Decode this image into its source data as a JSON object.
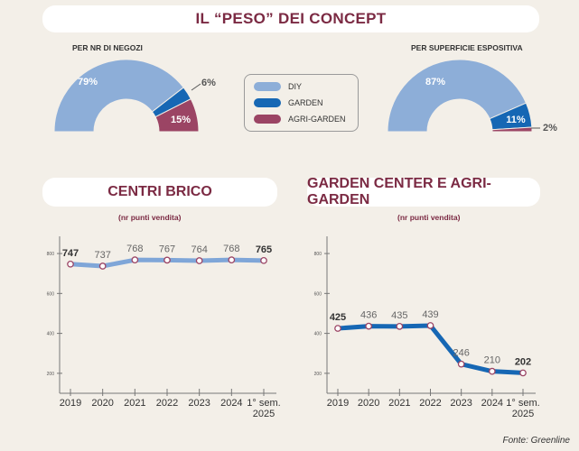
{
  "title": "IL “PESO” DEI CONCEPT",
  "colors": {
    "diy": "#8daed8",
    "garden": "#1667b4",
    "agri": "#9b4464",
    "title": "#7b2a43"
  },
  "donuts": {
    "left": {
      "label": "PER NR DI NEGOZI",
      "slices": [
        {
          "name": "DIY",
          "value": 79,
          "text": "79%"
        },
        {
          "name": "GARDEN",
          "value": 6,
          "text": "6%"
        },
        {
          "name": "AGRI-GARDEN",
          "value": 15,
          "text": "15%"
        }
      ]
    },
    "right": {
      "label": "PER SUPERFICIE ESPOSITIVA",
      "slices": [
        {
          "name": "DIY",
          "value": 87,
          "text": "87%"
        },
        {
          "name": "GARDEN",
          "value": 11,
          "text": "11%"
        },
        {
          "name": "AGRI-GARDEN",
          "value": 2,
          "text": "2%"
        }
      ]
    }
  },
  "legend": [
    "DIY",
    "GARDEN",
    "AGRI-GARDEN"
  ],
  "chart_data": [
    {
      "type": "line",
      "title": "CENTRI BRICO",
      "subtitle": "(nr punti vendita)",
      "categories": [
        "2019",
        "2020",
        "2021",
        "2022",
        "2023",
        "2024",
        "1° sem.|2025"
      ],
      "values": [
        747,
        737,
        768,
        767,
        764,
        768,
        765
      ],
      "bold_labels": [
        0,
        6
      ],
      "yticks": [
        200,
        400,
        600,
        800
      ],
      "ylim": [
        100,
        850
      ]
    },
    {
      "type": "line",
      "title": "GARDEN CENTER E AGRI-GARDEN",
      "subtitle": "(nr punti vendita)",
      "categories": [
        "2019",
        "2020",
        "2021",
        "2022",
        "2023",
        "2024",
        "1° sem.|2025"
      ],
      "values": [
        425,
        436,
        435,
        439,
        246,
        210,
        202
      ],
      "bold_labels": [
        0,
        6
      ],
      "yticks": [
        200,
        400,
        600,
        800
      ],
      "ylim": [
        100,
        850
      ]
    }
  ],
  "source": "Fonte: Greenline"
}
